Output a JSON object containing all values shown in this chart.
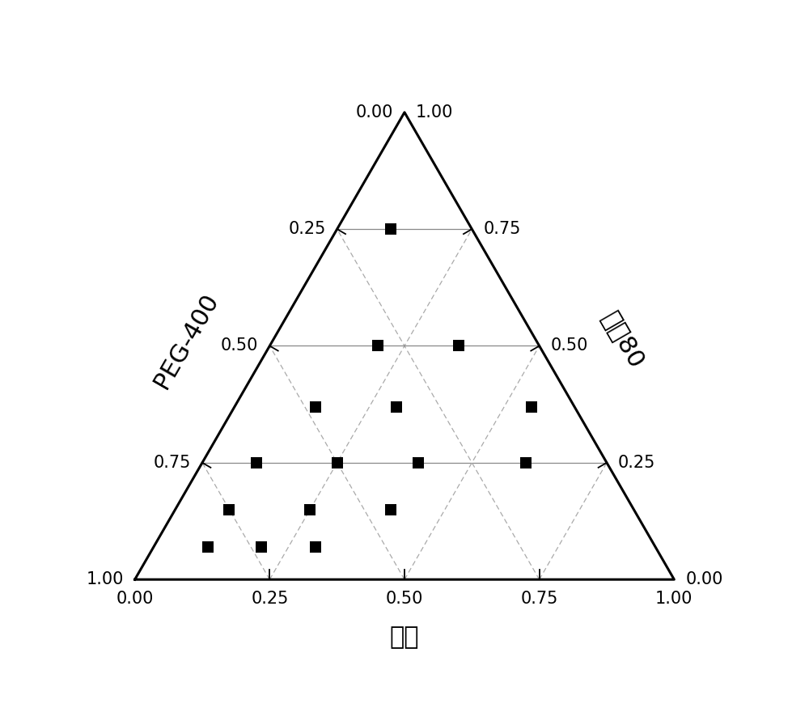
{
  "title": "",
  "bottom_label": "油相",
  "left_label": "PEG-400",
  "right_label": "吐温80",
  "background_color": "#ffffff",
  "line_color": "#000000",
  "grid_solid_color": "#888888",
  "grid_dashed_color": "#aaaaaa",
  "point_color": "#000000",
  "point_size": 100,
  "point_marker": "s",
  "refined_points": [
    [
      0.1,
      0.15,
      0.75
    ],
    [
      0.2,
      0.3,
      0.5
    ],
    [
      0.35,
      0.15,
      0.5
    ],
    [
      0.15,
      0.48,
      0.37
    ],
    [
      0.3,
      0.33,
      0.37
    ],
    [
      0.55,
      0.08,
      0.37
    ],
    [
      0.1,
      0.65,
      0.25
    ],
    [
      0.25,
      0.5,
      0.25
    ],
    [
      0.4,
      0.35,
      0.25
    ],
    [
      0.6,
      0.15,
      0.25
    ],
    [
      0.1,
      0.75,
      0.15
    ],
    [
      0.25,
      0.6,
      0.15
    ],
    [
      0.4,
      0.45,
      0.15
    ],
    [
      0.2,
      0.73,
      0.07
    ],
    [
      0.3,
      0.63,
      0.07
    ],
    [
      0.1,
      0.83,
      0.07
    ]
  ],
  "label_fontsize": 20,
  "tick_fontsize": 15,
  "axis_label_fontsize": 22
}
